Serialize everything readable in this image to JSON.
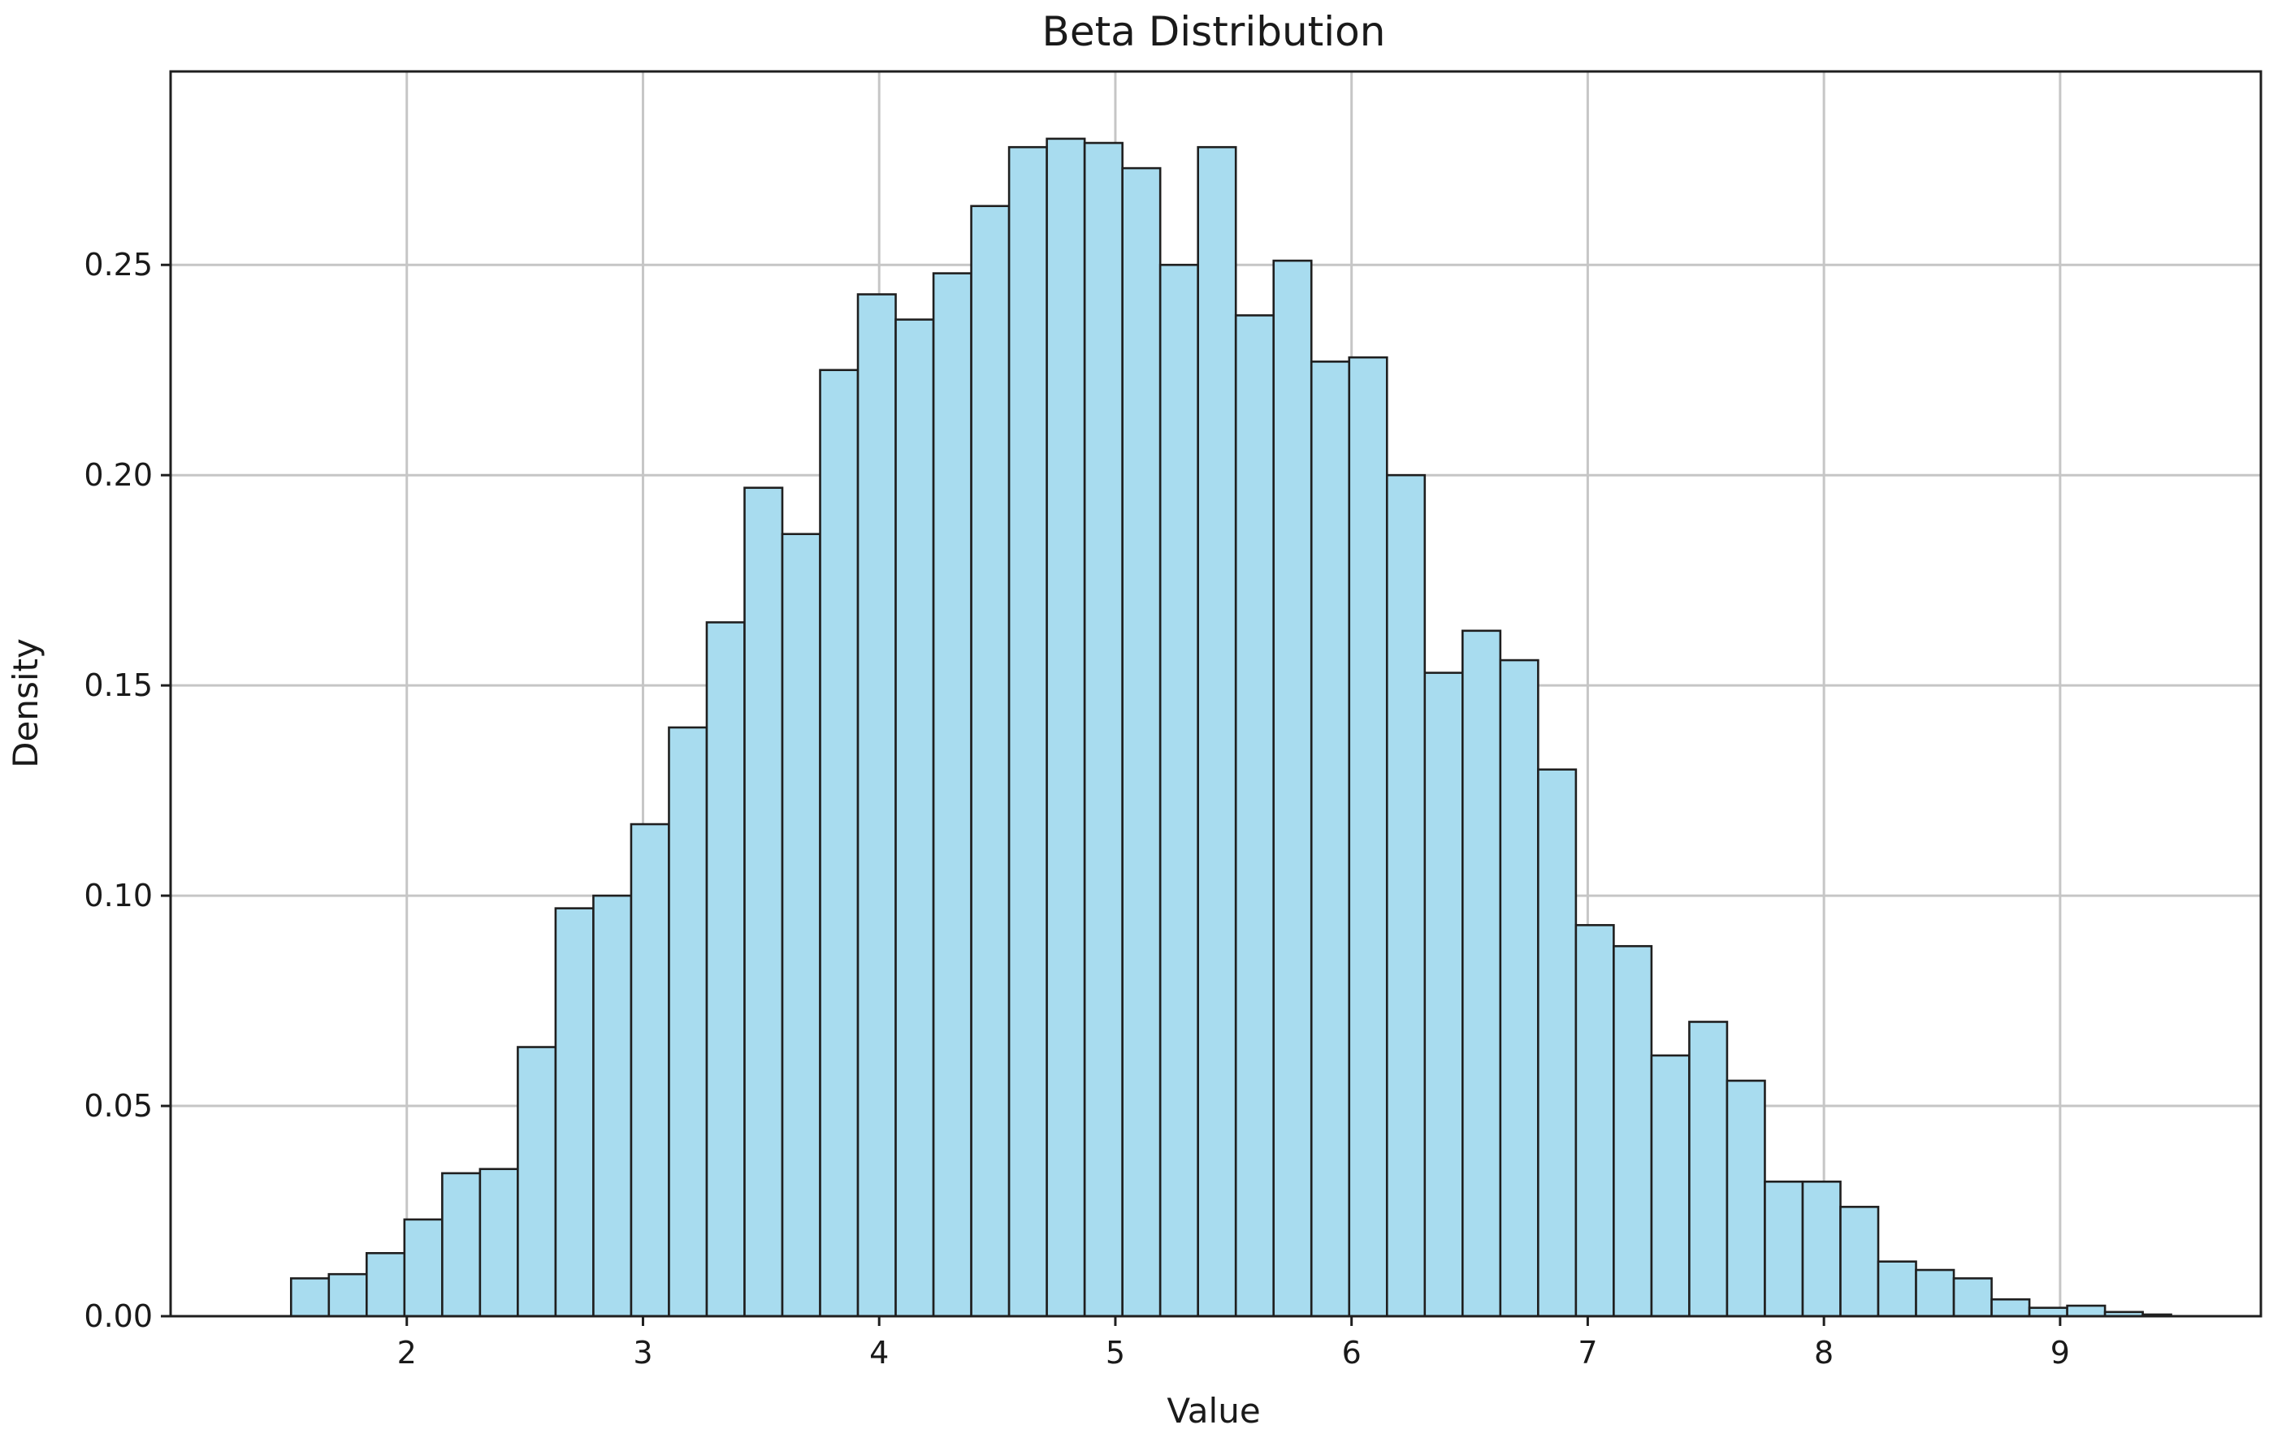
{
  "chart_data": {
    "type": "bar",
    "title": "Beta Distribution",
    "xlabel": "Value",
    "ylabel": "Density",
    "xlim": [
      1.0,
      9.85
    ],
    "ylim": [
      0.0,
      0.296
    ],
    "grid": true,
    "bar_color": "#a8dcef",
    "edge_color": "#1f1f1f",
    "x_ticks": [
      {
        "value": 2,
        "label": "2"
      },
      {
        "value": 3,
        "label": "3"
      },
      {
        "value": 4,
        "label": "4"
      },
      {
        "value": 5,
        "label": "5"
      },
      {
        "value": 6,
        "label": "6"
      },
      {
        "value": 7,
        "label": "7"
      },
      {
        "value": 8,
        "label": "8"
      },
      {
        "value": 9,
        "label": "9"
      }
    ],
    "y_ticks": [
      {
        "value": 0.0,
        "label": "0.00"
      },
      {
        "value": 0.05,
        "label": "0.05"
      },
      {
        "value": 0.1,
        "label": "0.10"
      },
      {
        "value": 0.15,
        "label": "0.15"
      },
      {
        "value": 0.2,
        "label": "0.20"
      },
      {
        "value": 0.25,
        "label": "0.25"
      }
    ],
    "bin_edges": [
      1.51,
      1.67,
      1.83,
      1.99,
      2.15,
      2.31,
      2.47,
      2.63,
      2.79,
      2.95,
      3.11,
      3.27,
      3.43,
      3.59,
      3.75,
      3.91,
      4.07,
      4.23,
      4.39,
      4.55,
      4.71,
      4.87,
      5.03,
      5.19,
      5.35,
      5.51,
      5.67,
      5.83,
      5.99,
      6.15,
      6.31,
      6.47,
      6.63,
      6.79,
      6.95,
      7.11,
      7.27,
      7.43,
      7.59,
      7.75,
      7.91,
      8.07,
      8.23,
      8.39,
      8.55,
      8.71,
      8.87,
      9.03,
      9.19,
      9.35,
      9.47
    ],
    "values": [
      0.009,
      0.01,
      0.015,
      0.023,
      0.034,
      0.035,
      0.064,
      0.097,
      0.1,
      0.117,
      0.14,
      0.165,
      0.197,
      0.186,
      0.225,
      0.243,
      0.237,
      0.248,
      0.264,
      0.278,
      0.28,
      0.279,
      0.273,
      0.25,
      0.278,
      0.238,
      0.251,
      0.227,
      0.228,
      0.2,
      0.153,
      0.163,
      0.156,
      0.13,
      0.093,
      0.088,
      0.062,
      0.07,
      0.056,
      0.032,
      0.032,
      0.026,
      0.013,
      0.011,
      0.009,
      0.004,
      0.002,
      0.0025,
      0.001,
      0.0004
    ]
  }
}
